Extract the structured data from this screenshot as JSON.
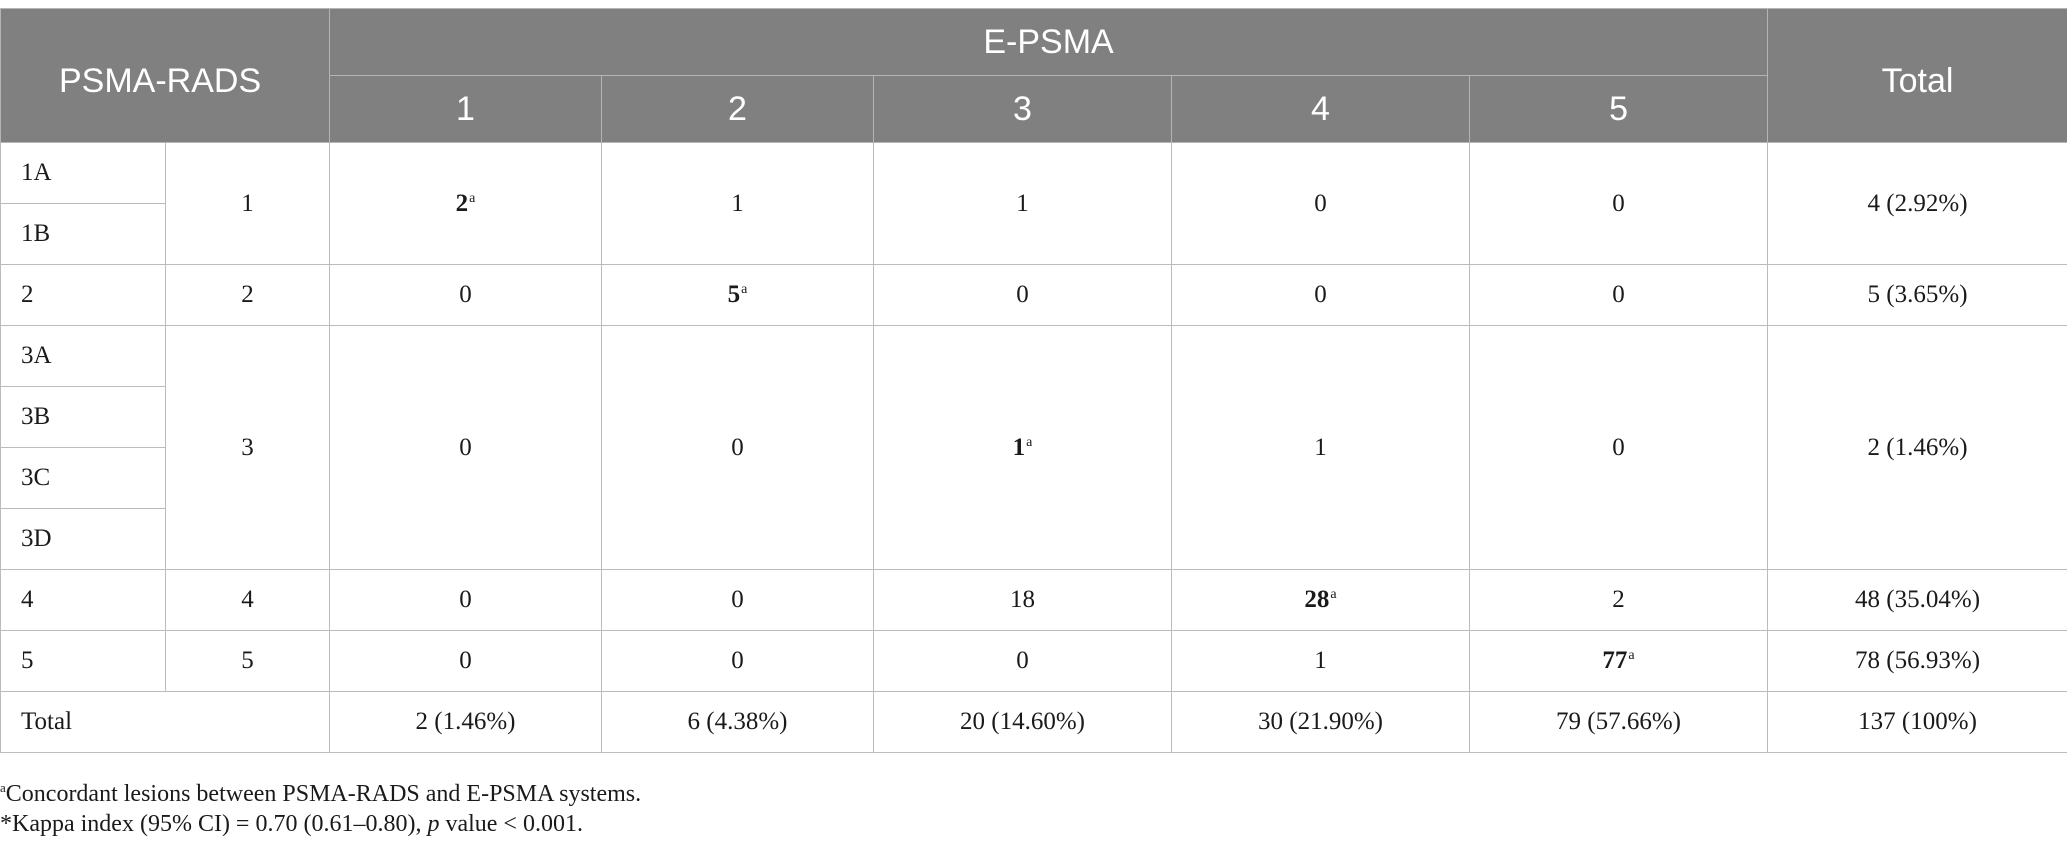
{
  "header": {
    "corner": "PSMA-RADS",
    "group": "E-PSMA",
    "total": "Total",
    "columns": [
      "1",
      "2",
      "3",
      "4",
      "5"
    ]
  },
  "marker": "a",
  "rows": {
    "g1": {
      "subs": [
        "1A",
        "1B"
      ],
      "group": "1",
      "cells": [
        "2",
        "1",
        "1",
        "0",
        "0"
      ],
      "total": "4 (2.92%)"
    },
    "g2": {
      "subs": [
        "2"
      ],
      "group": "2",
      "cells": [
        "0",
        "5",
        "0",
        "0",
        "0"
      ],
      "total": "5 (3.65%)"
    },
    "g3": {
      "subs": [
        "3A",
        "3B",
        "3C",
        "3D"
      ],
      "group": "3",
      "cells": [
        "0",
        "0",
        "1",
        "1",
        "0"
      ],
      "total": "2 (1.46%)"
    },
    "g4": {
      "subs": [
        "4"
      ],
      "group": "4",
      "cells": [
        "0",
        "0",
        "18",
        "28",
        "2"
      ],
      "total": "48 (35.04%)"
    },
    "g5": {
      "subs": [
        "5"
      ],
      "group": "5",
      "cells": [
        "0",
        "0",
        "0",
        "1",
        "77"
      ],
      "total": "78 (56.93%)"
    }
  },
  "totals": {
    "label": "Total",
    "cells": [
      "2 (1.46%)",
      "6 (4.38%)",
      "20 (14.60%)",
      "30 (21.90%)",
      "79 (57.66%)"
    ],
    "grand": "137 (100%)"
  },
  "notes": {
    "footnote_mark": "a",
    "footnote_text": "Concordant lesions between PSMA-RADS and E-PSMA systems.",
    "kappa_prefix": "*Kappa index (95% CI) = 0.70 (0.61–0.80), ",
    "kappa_p": "p",
    "kappa_suffix": " value < 0.001."
  }
}
